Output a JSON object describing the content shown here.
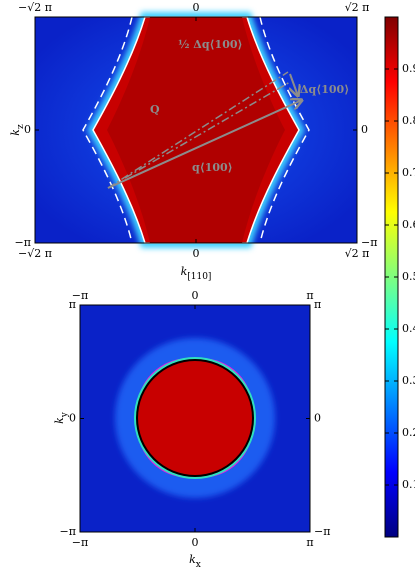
{
  "chart_data": [
    {
      "type": "heatmap",
      "xlabel": {
        "base": "k",
        "sub": "[110]"
      },
      "ylabel": {
        "base": "k",
        "sub": "z"
      },
      "xlim": [
        -4.443,
        4.443
      ],
      "xticks": [
        {
          "value": -4.443,
          "label": "−√2 π"
        },
        0,
        {
          "value": 4.443,
          "label": "√2 π"
        }
      ],
      "ylim": [
        -3.1416,
        3.1416
      ],
      "yticks": [
        {
          "value": -3.1416,
          "label": "−π"
        },
        0
      ],
      "annotations": [
        "½ Δq⟨100⟩",
        "Δq⟨100⟩",
        "Q",
        "q⟨100⟩"
      ],
      "colorbar": {
        "lim": [
          0,
          1
        ],
        "ticks": [
          0.1,
          0.2,
          0.3,
          0.4,
          0.5,
          0.6,
          0.7,
          0.8,
          0.9
        ]
      }
    },
    {
      "type": "heatmap",
      "xlabel": {
        "base": "k",
        "sub": "x"
      },
      "ylabel": {
        "base": "k",
        "sub": "y"
      },
      "xlim": [
        -3.1416,
        3.1416
      ],
      "xticks": [
        {
          "value": -3.1416,
          "label": "−π"
        },
        0,
        {
          "value": 3.1416,
          "label": "π"
        }
      ],
      "ylim": [
        -3.1416,
        3.1416
      ],
      "yticks": [
        {
          "value": -3.1416,
          "label": "−π"
        },
        0,
        {
          "value": 3.1416,
          "label": "π"
        }
      ]
    }
  ]
}
